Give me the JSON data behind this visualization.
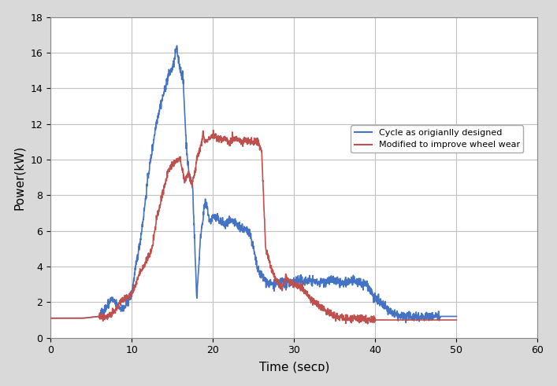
{
  "title": "",
  "xlabel": "Time (secᴅ)",
  "ylabel": "Power(kW)",
  "xlim": [
    0,
    60
  ],
  "ylim": [
    0,
    18
  ],
  "xticks": [
    0,
    10,
    20,
    30,
    40,
    50,
    60
  ],
  "yticks": [
    0,
    2,
    4,
    6,
    8,
    10,
    12,
    14,
    16,
    18
  ],
  "blue_color": "#4472C4",
  "red_color": "#C0504D",
  "bg_color": "#D9D9D9",
  "plot_bg_color": "#FFFFFF",
  "legend_labels": [
    "Cycle as origianlly designed",
    "Modified to improve wheel wear"
  ],
  "blue_data": {
    "t": [
      0,
      1,
      2,
      3,
      4,
      5,
      6,
      7,
      7.5,
      8,
      8.5,
      9,
      9.5,
      10,
      10.5,
      11,
      11.5,
      12,
      12.5,
      13,
      13.5,
      14,
      14.5,
      15,
      15.2,
      15.5,
      16,
      16.3,
      16.7,
      17,
      17.5,
      18,
      18.5,
      19,
      19.3,
      19.6,
      20,
      20.5,
      21,
      21.5,
      22,
      22.5,
      23,
      23.5,
      24,
      24.5,
      25,
      25.5,
      26,
      26.5,
      27,
      27.5,
      28,
      28.5,
      29,
      30,
      31,
      32,
      33,
      34,
      35,
      36,
      37,
      38,
      39,
      40,
      41,
      42,
      43,
      44,
      45,
      46,
      47,
      48,
      49,
      50
    ],
    "y": [
      1.1,
      1.1,
      1.1,
      1.1,
      1.1,
      1.15,
      1.2,
      1.8,
      2.2,
      1.9,
      1.7,
      1.6,
      2.0,
      2.5,
      4.0,
      5.3,
      7.0,
      9.0,
      10.5,
      12.0,
      13.0,
      13.8,
      14.7,
      15.1,
      15.4,
      16.3,
      15.0,
      14.7,
      11.0,
      9.3,
      8.5,
      2.2,
      5.8,
      7.5,
      7.3,
      6.5,
      6.8,
      6.7,
      6.5,
      6.3,
      6.5,
      6.5,
      6.3,
      6.2,
      6.0,
      6.0,
      5.0,
      3.8,
      3.5,
      3.2,
      3.0,
      3.0,
      3.0,
      3.2,
      3.0,
      3.2,
      3.2,
      3.2,
      3.1,
      3.2,
      3.2,
      3.0,
      3.2,
      3.1,
      3.0,
      2.2,
      1.8,
      1.4,
      1.2,
      1.2,
      1.2,
      1.2,
      1.2,
      1.2,
      1.2,
      1.2
    ]
  },
  "red_data": {
    "t": [
      0,
      1,
      2,
      3,
      4,
      5,
      6,
      7,
      7.5,
      8,
      8.5,
      9,
      9.5,
      10,
      10.5,
      11,
      11.5,
      12,
      12.5,
      13,
      13.5,
      14,
      14.5,
      15,
      15.5,
      16,
      16.5,
      17,
      17.4,
      17.8,
      18,
      18.4,
      18.8,
      19,
      19.5,
      20,
      20.5,
      21,
      21.5,
      22,
      22.5,
      23,
      23.5,
      24,
      24.5,
      25,
      25.5,
      26,
      26.5,
      27,
      27.5,
      28,
      28.5,
      29,
      29.5,
      30,
      31,
      32,
      33,
      34,
      35,
      36,
      37,
      38,
      39,
      40,
      41,
      42,
      43,
      44,
      45,
      46,
      47,
      48,
      49,
      50
    ],
    "y": [
      1.1,
      1.1,
      1.1,
      1.1,
      1.1,
      1.15,
      1.2,
      1.2,
      1.3,
      1.5,
      2.0,
      2.2,
      2.3,
      2.5,
      3.0,
      3.7,
      4.0,
      4.5,
      5.0,
      6.5,
      7.5,
      8.5,
      9.3,
      9.8,
      9.9,
      10.0,
      8.8,
      9.3,
      8.5,
      9.3,
      10.0,
      10.5,
      11.5,
      11.0,
      11.2,
      11.4,
      11.2,
      11.1,
      11.2,
      11.0,
      11.2,
      11.1,
      11.0,
      11.1,
      11.0,
      11.0,
      11.1,
      10.5,
      5.0,
      4.2,
      3.5,
      3.1,
      2.8,
      3.5,
      3.1,
      3.0,
      2.8,
      2.2,
      1.8,
      1.5,
      1.2,
      1.1,
      1.1,
      1.1,
      1.0,
      1.0,
      1.0,
      1.0,
      1.0,
      1.0,
      1.0,
      1.0,
      1.0,
      1.0,
      1.0,
      1.0
    ]
  },
  "grid_color": "#C0C0C0",
  "linewidth": 1.2,
  "font_size_axis_label": 11,
  "font_size_tick": 9,
  "legend_font_size": 8
}
